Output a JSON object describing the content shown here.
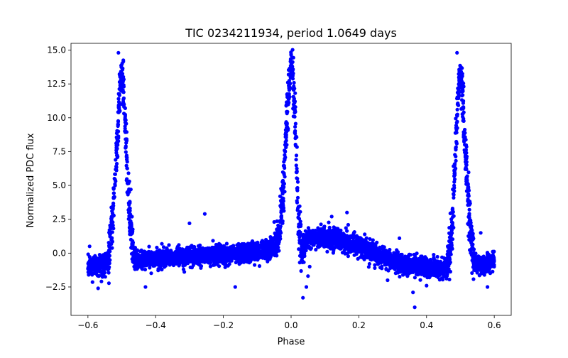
{
  "chart_data": {
    "type": "scatter",
    "title": "TIC 0234211934, period 1.0649 days",
    "xlabel": "Phase",
    "ylabel": "Normalized PDC flux",
    "xlim": [
      -0.65,
      0.65
    ],
    "ylim": [
      -4.6,
      15.5
    ],
    "xticks": [
      -0.6,
      -0.4,
      -0.2,
      0.0,
      0.2,
      0.4,
      0.6
    ],
    "xtick_labels": [
      "−0.6",
      "−0.4",
      "−0.2",
      "0.0",
      "0.2",
      "0.4",
      "0.6"
    ],
    "yticks": [
      -2.5,
      0.0,
      2.5,
      5.0,
      7.5,
      10.0,
      12.5,
      15.0
    ],
    "ytick_labels": [
      "−2.5",
      "0.0",
      "2.5",
      "5.0",
      "7.5",
      "10.0",
      "12.5",
      "15.0"
    ],
    "grid": false,
    "legend": "none",
    "series": [
      {
        "color": "#0000ff",
        "marker": "circle",
        "profile_x": [
          -0.6,
          -0.56,
          -0.54,
          -0.53,
          -0.52,
          -0.51,
          -0.505,
          -0.5,
          -0.495,
          -0.49,
          -0.48,
          -0.47,
          -0.46,
          -0.44,
          -0.35,
          -0.25,
          -0.15,
          -0.08,
          -0.05,
          -0.035,
          -0.025,
          -0.015,
          -0.008,
          0.0,
          0.005,
          0.012,
          0.02,
          0.03,
          0.05,
          0.1,
          0.15,
          0.2,
          0.25,
          0.3,
          0.35,
          0.4,
          0.44,
          0.46,
          0.47,
          0.48,
          0.49,
          0.495,
          0.5,
          0.505,
          0.51,
          0.52,
          0.53,
          0.54,
          0.56,
          0.6
        ],
        "profile_y": [
          -1.0,
          -0.9,
          -0.5,
          1.5,
          5.0,
          10.0,
          12.5,
          13.2,
          12.0,
          9.5,
          4.0,
          0.8,
          -0.6,
          -0.5,
          -0.3,
          -0.2,
          -0.1,
          0.1,
          0.5,
          1.5,
          4.0,
          8.5,
          12.0,
          14.2,
          13.0,
          9.5,
          3.5,
          0.2,
          1.0,
          1.1,
          0.9,
          0.6,
          -0.1,
          -0.6,
          -0.9,
          -1.0,
          -1.1,
          -0.9,
          0.5,
          4.0,
          10.0,
          12.5,
          13.2,
          12.0,
          9.5,
          5.0,
          1.5,
          -0.5,
          -0.9,
          -0.6
        ],
        "outliers": [
          {
            "x": -0.51,
            "y": 14.8
          },
          {
            "x": 0.0,
            "y": 14.7
          },
          {
            "x": 0.49,
            "y": 14.8
          },
          {
            "x": -0.595,
            "y": 0.5
          },
          {
            "x": -0.57,
            "y": -2.6
          },
          {
            "x": -0.43,
            "y": -2.5
          },
          {
            "x": -0.3,
            "y": 2.2
          },
          {
            "x": -0.255,
            "y": 2.9
          },
          {
            "x": -0.165,
            "y": -2.5
          },
          {
            "x": -0.05,
            "y": 2.3
          },
          {
            "x": 0.035,
            "y": -3.3
          },
          {
            "x": 0.045,
            "y": -2.5
          },
          {
            "x": 0.05,
            "y": -1.7
          },
          {
            "x": 0.055,
            "y": -1.0
          },
          {
            "x": 0.165,
            "y": 3.0
          },
          {
            "x": 0.12,
            "y": 2.7
          },
          {
            "x": 0.285,
            "y": -2.0
          },
          {
            "x": 0.32,
            "y": 1.1
          },
          {
            "x": 0.36,
            "y": -2.9
          },
          {
            "x": 0.365,
            "y": -4.0
          },
          {
            "x": 0.4,
            "y": -2.4
          },
          {
            "x": 0.56,
            "y": 1.5
          },
          {
            "x": 0.58,
            "y": -2.5
          }
        ]
      }
    ]
  }
}
